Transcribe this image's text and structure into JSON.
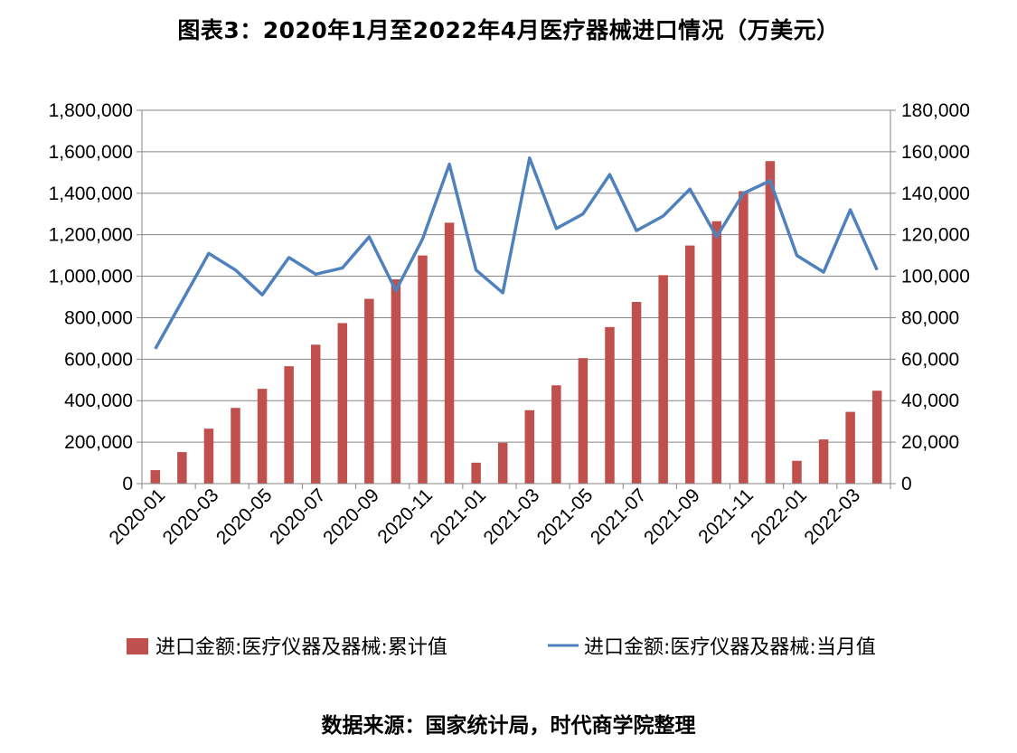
{
  "title": "图表3：2020年1月至2022年4月医疗器械进口情况（万美元）",
  "source": "数据来源：国家统计局，时代商学院整理",
  "colors": {
    "bar": "#C0504D",
    "line": "#4F81BD",
    "grid": "#868686",
    "axis": "#868686"
  },
  "chart_data": {
    "type": "bar+line",
    "categories": [
      "2020-01",
      "2020-02",
      "2020-03",
      "2020-04",
      "2020-05",
      "2020-06",
      "2020-07",
      "2020-08",
      "2020-09",
      "2020-10",
      "2020-11",
      "2020-12",
      "2021-01",
      "2021-02",
      "2021-03",
      "2021-04",
      "2021-05",
      "2021-06",
      "2021-07",
      "2021-08",
      "2021-09",
      "2021-10",
      "2021-11",
      "2021-12",
      "2022-01",
      "2022-02",
      "2022-03",
      "2022-04"
    ],
    "x_tick_labels": [
      "2020-01",
      "2020-03",
      "2020-05",
      "2020-07",
      "2020-09",
      "2020-11",
      "2021-01",
      "2021-03",
      "2021-05",
      "2021-07",
      "2021-09",
      "2021-11",
      "2022-01",
      "2022-03"
    ],
    "series": [
      {
        "name": "进口金额:医疗仪器及器械:累计值",
        "type": "bar",
        "axis": "left",
        "values": [
          65000,
          152000,
          265000,
          365000,
          457000,
          566000,
          670000,
          774000,
          891000,
          985000,
          1100000,
          1258000,
          101000,
          197000,
          354000,
          474000,
          605000,
          755000,
          876000,
          1005000,
          1148000,
          1265000,
          1410000,
          1555000,
          110000,
          213000,
          346000,
          448000
        ]
      },
      {
        "name": "进口金额:医疗仪器及器械:当月值",
        "type": "line",
        "axis": "right",
        "values": [
          65000,
          88000,
          111000,
          103000,
          91000,
          109000,
          101000,
          104000,
          119000,
          93000,
          118000,
          154000,
          103000,
          92000,
          157000,
          123000,
          130000,
          149000,
          122000,
          129000,
          142000,
          119000,
          140000,
          146000,
          110000,
          102000,
          132000,
          103000
        ]
      }
    ],
    "y_left": {
      "min": 0,
      "max": 1800000,
      "step": 200000,
      "tick_labels": [
        "0",
        "200,000",
        "400,000",
        "600,000",
        "800,000",
        "1,000,000",
        "1,200,000",
        "1,400,000",
        "1,600,000",
        "1,800,000"
      ]
    },
    "y_right": {
      "min": 0,
      "max": 180000,
      "step": 20000,
      "tick_labels": [
        "0",
        "20,000",
        "40,000",
        "60,000",
        "80,000",
        "100,000",
        "120,000",
        "140,000",
        "160,000",
        "180,000"
      ]
    },
    "grid": true,
    "legend_position": "bottom"
  }
}
